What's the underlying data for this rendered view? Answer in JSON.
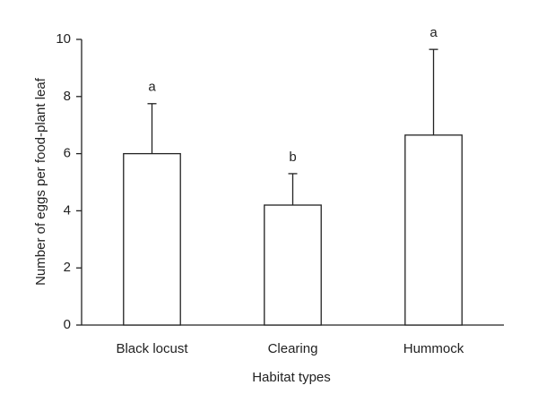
{
  "chart_data": {
    "type": "bar",
    "x_label": "Habitat types",
    "y_label": "Number of eggs per food-plant leaf",
    "categories": [
      "Black locust",
      "Clearing",
      "Hummock"
    ],
    "values": [
      6.0,
      4.2,
      6.65
    ],
    "errors": [
      1.75,
      1.1,
      3.0
    ],
    "labels": [
      "a",
      "b",
      "a"
    ],
    "color": "#ffffff",
    "ylim": [
      0,
      10
    ],
    "yticks": [
      0,
      2,
      4,
      6,
      8,
      10
    ],
    "grid": false
  }
}
